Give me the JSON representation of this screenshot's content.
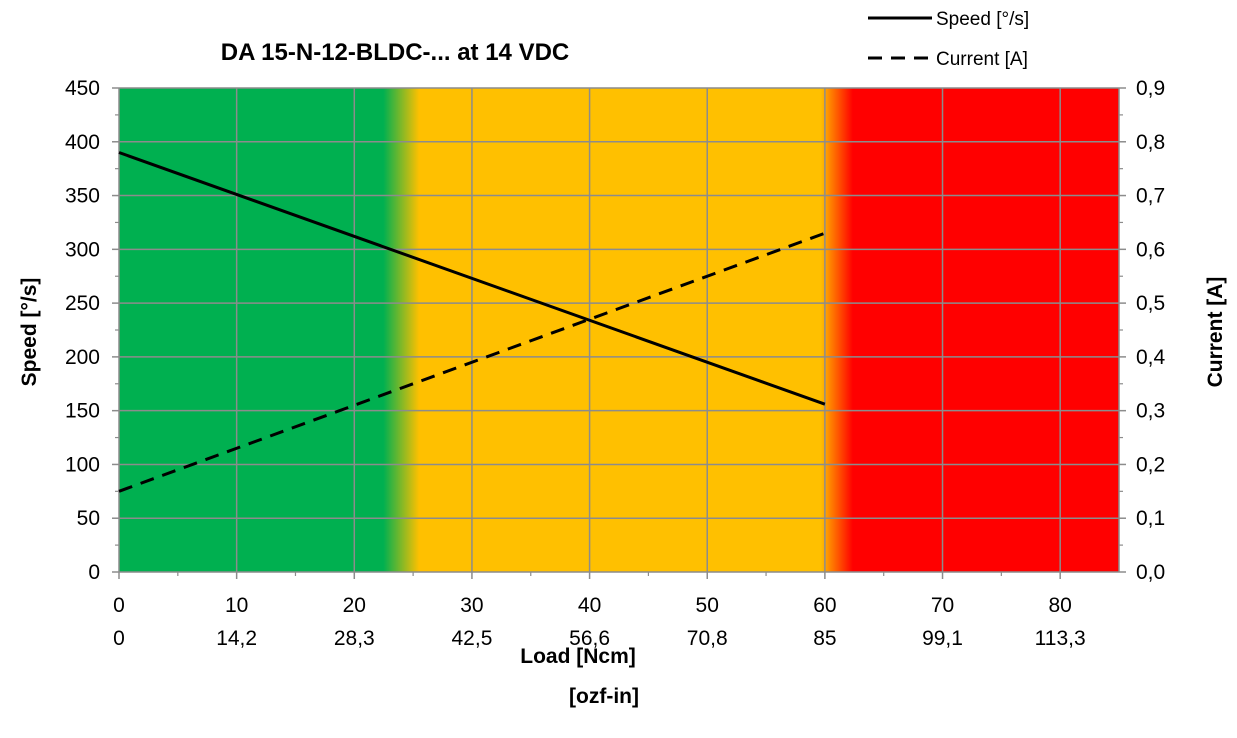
{
  "chart_data": {
    "type": "line",
    "title": "DA 15-N-12-BLDC-... at 14 VDC",
    "xlabel": "Load [Ncm]",
    "xlabel_secondary": "[ozf-in]",
    "ylabel": "Speed [°/s]",
    "y2label": "Current [A]",
    "xlim": [
      0,
      85
    ],
    "ylim": [
      0,
      450
    ],
    "y2lim": [
      0,
      0.9
    ],
    "grid": true,
    "legend_position": "top-right",
    "x_ticks": [
      0,
      10,
      20,
      30,
      40,
      50,
      60,
      70,
      80
    ],
    "x_tick_labels": [
      "0",
      "10",
      "20",
      "30",
      "40",
      "50",
      "60",
      "70",
      "80"
    ],
    "x_tick_labels_secondary": [
      "0",
      "14,2",
      "28,3",
      "42,5",
      "56,6",
      "70,8",
      "85",
      "99,1",
      "113,3"
    ],
    "y_ticks": [
      0,
      50,
      100,
      150,
      200,
      250,
      300,
      350,
      400,
      450
    ],
    "y_tick_labels": [
      "0",
      "50",
      "100",
      "150",
      "200",
      "250",
      "300",
      "350",
      "400",
      "450"
    ],
    "y2_ticks": [
      0,
      0.1,
      0.2,
      0.3,
      0.4,
      0.5,
      0.6,
      0.7,
      0.8,
      0.9
    ],
    "y2_tick_labels": [
      "0,0",
      "0,1",
      "0,2",
      "0,3",
      "0,4",
      "0,5",
      "0,6",
      "0,7",
      "0,8",
      "0,9"
    ],
    "zones": [
      {
        "x_from": 0,
        "x_to": 24,
        "color": "#00B050"
      },
      {
        "x_from": 24,
        "x_to": 60,
        "color": "#FFC000"
      },
      {
        "x_from": 60,
        "x_to": 85,
        "color": "#FF0000"
      }
    ],
    "series": [
      {
        "name": "Speed [°/s]",
        "axis": "left",
        "style": "solid",
        "x": [
          0,
          60
        ],
        "y": [
          390,
          156
        ]
      },
      {
        "name": "Current [A]",
        "axis": "right",
        "style": "dashed",
        "x": [
          0,
          60
        ],
        "y": [
          0.15,
          0.63
        ]
      }
    ]
  },
  "colors": {
    "green_zone": "#00B050",
    "yellow_zone": "#FFC000",
    "red_zone": "#FF0000",
    "transition_orange": "#FF8000",
    "line": "#000000",
    "gridline": "#8C8C8C"
  }
}
